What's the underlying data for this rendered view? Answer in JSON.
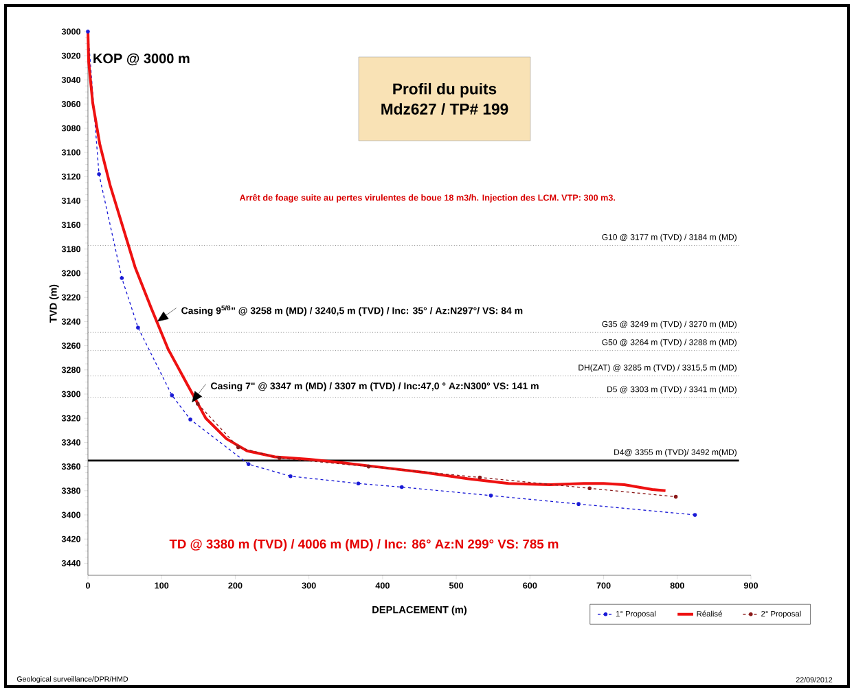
{
  "chart_data": {
    "type": "line",
    "title": "Profil du puits",
    "subtitle": "Mdz627 / TP# 199",
    "xlabel": "DEPLACEMENT (m)",
    "ylabel": "TVD (m)",
    "xlim": [
      0,
      900
    ],
    "xticks": [
      0,
      100,
      200,
      300,
      400,
      500,
      600,
      700,
      800,
      900
    ],
    "ylim": [
      3450,
      3000
    ],
    "yticks": [
      3000,
      3020,
      3040,
      3060,
      3080,
      3100,
      3120,
      3140,
      3160,
      3180,
      3200,
      3220,
      3240,
      3260,
      3280,
      3300,
      3320,
      3340,
      3360,
      3380,
      3400,
      3420,
      3440
    ],
    "grid": false,
    "legend": "bottom right",
    "series": [
      {
        "name": "1° Proposal",
        "color": "#1a1ad6",
        "marker": "circle",
        "line_style": "dashed",
        "x": [
          0,
          15,
          46,
          68,
          114,
          139,
          218,
          275,
          367,
          426,
          547,
          666,
          824
        ],
        "values": [
          3000,
          3118,
          3204,
          3245,
          3301,
          3321,
          3358,
          3368,
          3374,
          3377,
          3384,
          3391,
          3400
        ]
      },
      {
        "name": "Réalisé",
        "color": "#ee1111",
        "marker": "none",
        "line_style": "solid",
        "x": [
          0,
          1,
          6.5,
          16,
          30,
          47,
          64,
          86,
          109,
          134,
          160,
          188,
          216,
          254,
          300,
          347,
          403,
          459,
          515,
          571,
          627,
          673,
          700,
          728,
          766,
          784
        ],
        "values": [
          3000,
          3025,
          3059,
          3093,
          3127,
          3161,
          3195,
          3229,
          3263,
          3291,
          3320,
          3337,
          3347,
          3352,
          3354,
          3357,
          3361,
          3365,
          3370,
          3374,
          3375,
          3374,
          3374,
          3375,
          3379,
          3380
        ]
      },
      {
        "name": "2° Proposal",
        "color": "#8b1a1a",
        "marker": "circle",
        "line_style": "dashed",
        "x": [
          149,
          204,
          260,
          381,
          532,
          681,
          798
        ],
        "values": [
          3308,
          3344,
          3353,
          3360,
          3369,
          3378,
          3385
        ]
      }
    ],
    "ref_lines": [
      {
        "axis": "y",
        "value": 3177,
        "label": "G10 @    3177 m (TVD) / 3184 m (MD)",
        "color": "#808080",
        "line_style": "dotted"
      },
      {
        "axis": "y",
        "value": 3249,
        "label": "G35 @ 3249 m (TVD) / 3270  m (MD)",
        "color": "#808080",
        "line_style": "dotted"
      },
      {
        "axis": "y",
        "value": 3264,
        "label": "G50 @ 3264 m (TVD) / 3288 m (MD)",
        "color": "#808080",
        "line_style": "dotted"
      },
      {
        "axis": "y",
        "value": 3285,
        "label": "DH(ZAT) @ 3285 m (TVD) / 3315,5 m (MD)",
        "color": "#808080",
        "line_style": "dotted"
      },
      {
        "axis": "y",
        "value": 3303,
        "label": "D5  @  3303 m (TVD) / 3341 m (MD)",
        "color": "#808080",
        "line_style": "dotted"
      },
      {
        "axis": "y",
        "value": 3355,
        "label": "D4@ 3355 m (TVD)/ 3492 m(MD)",
        "color": "#000000",
        "line_style": "solid"
      }
    ],
    "annotations": [
      "KOP  @ 3000 m",
      "Arrêt de foage suite au pertes virulentes de boue 18 m3/h.  Injection des LCM. VTP: 300 m3.",
      {
        "text": "Casing 9$^{5/8}$\" @ 3258 m (MD) / 3240,5 m (TVD) /  Inc: 35° / Az:N297°/  VS: 84 m",
        "x": 94,
        "y": 3240
      },
      {
        "text": "Casing 7\" @ 3347 m (MD) / 3307 m (TVD) /  Inc:47,0 ° Az:N300° VS: 141 m",
        "x": 141,
        "y": 3307
      },
      "TD   @ 3380 m (TVD) / 4006 m (MD) / Inc: 86°   Az:N 299°     VS: 785 m",
      "Geological  surveillance/DPR/HMD",
      "22/09/2012"
    ]
  }
}
